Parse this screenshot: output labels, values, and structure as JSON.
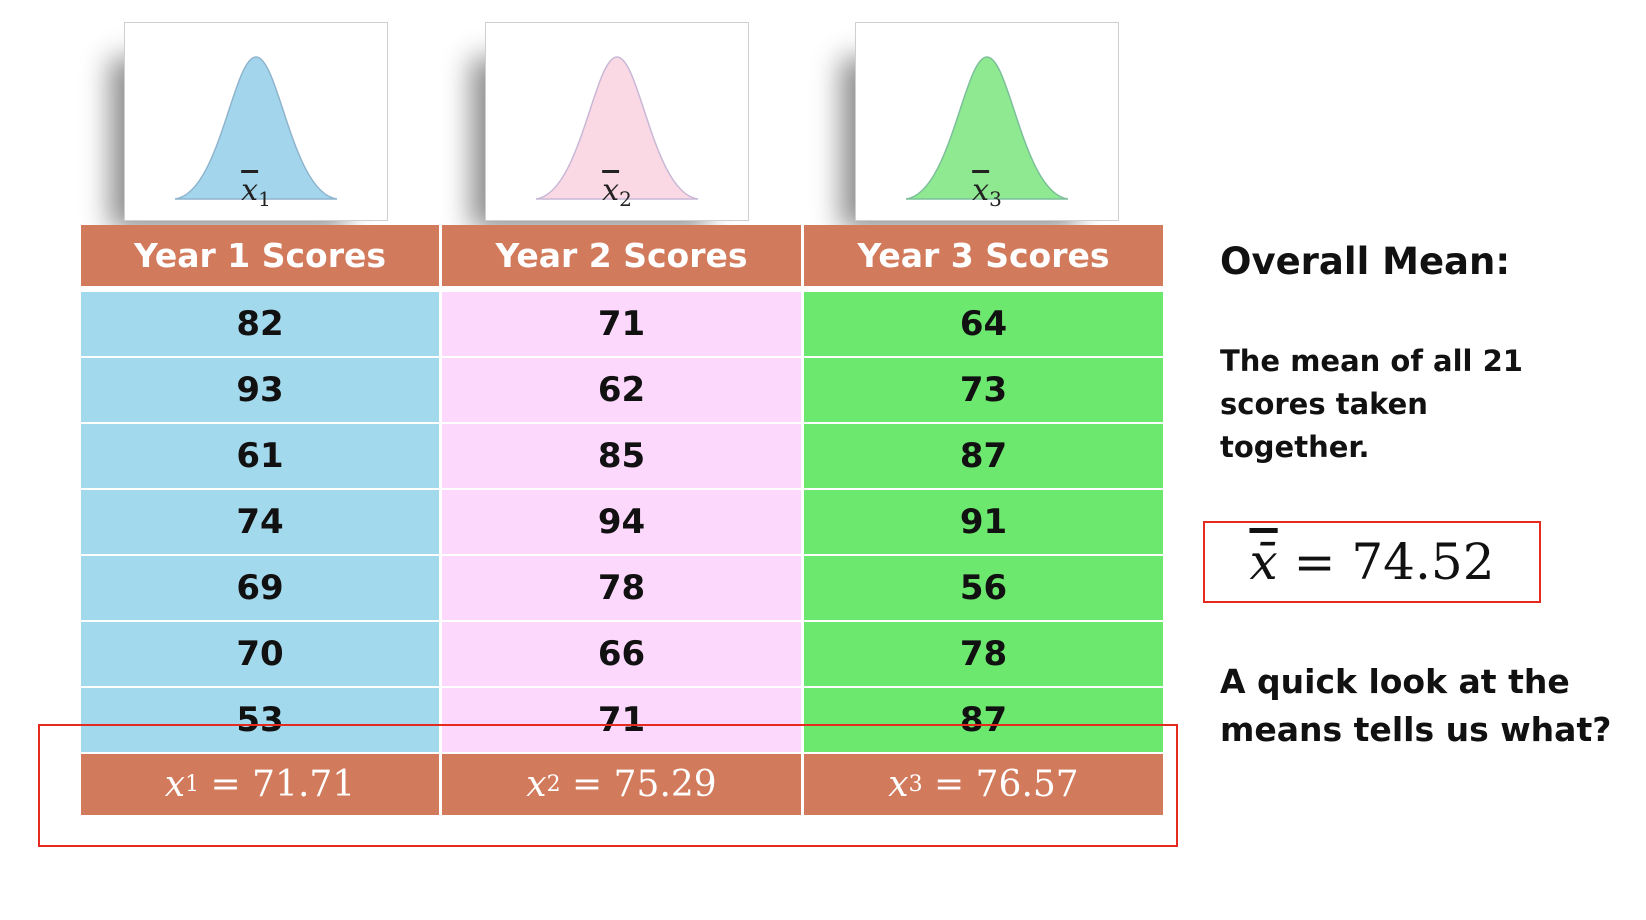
{
  "cards": [
    {
      "label": "x",
      "sub": "1",
      "fill": "#a3d6ec",
      "stroke": "#8fb4ce"
    },
    {
      "label": "x",
      "sub": "2",
      "fill": "#fbd9e4",
      "stroke": "#c8b8d6"
    },
    {
      "label": "x",
      "sub": "3",
      "fill": "#8fe990",
      "stroke": "#7cbf9a"
    }
  ],
  "table": {
    "headers": [
      "Year 1 Scores",
      "Year 2 Scores",
      "Year 3 Scores"
    ],
    "columns": [
      [
        "82",
        "93",
        "61",
        "74",
        "69",
        "70",
        "53"
      ],
      [
        "71",
        "62",
        "85",
        "94",
        "78",
        "66",
        "71"
      ],
      [
        "64",
        "73",
        "87",
        "91",
        "56",
        "78",
        "87"
      ]
    ],
    "means": [
      {
        "sym": "x",
        "sub": "1",
        "text": "= 71.71"
      },
      {
        "sym": "x",
        "sub": "2",
        "text": "= 75.29"
      },
      {
        "sym": "x",
        "sub": "3",
        "text": "= 76.57"
      }
    ],
    "column_colors": [
      "#a3d9ec",
      "#fcd8fc",
      "#6de86f"
    ],
    "header_color": "#d27a5c"
  },
  "side": {
    "title": "Overall Mean:",
    "description": "The mean of all 21 scores taken together.",
    "grand_mean_symbol": "x̄",
    "grand_mean_text": "= 74.52",
    "question": "A quick look at the means tells us what?"
  },
  "highlight_color": "#e52b20"
}
